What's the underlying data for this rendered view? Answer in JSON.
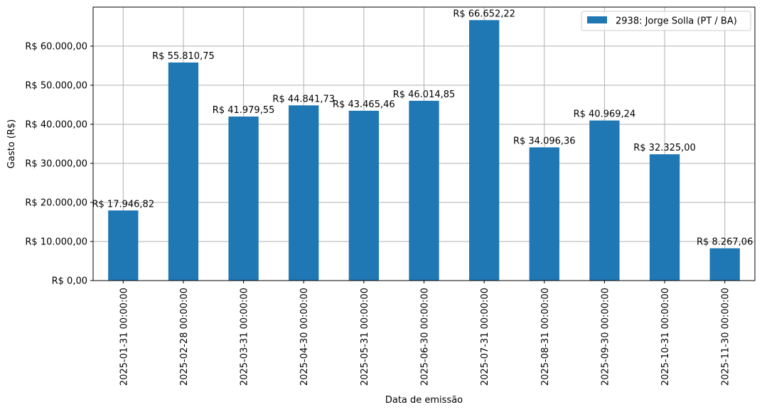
{
  "chart_data": {
    "type": "bar",
    "categories": [
      "2025-01-31 00:00:00",
      "2025-02-28 00:00:00",
      "2025-03-31 00:00:00",
      "2025-04-30 00:00:00",
      "2025-05-31 00:00:00",
      "2025-06-30 00:00:00",
      "2025-07-31 00:00:00",
      "2025-08-31 00:00:00",
      "2025-09-30 00:00:00",
      "2025-10-31 00:00:00",
      "2025-11-30 00:00:00"
    ],
    "series": [
      {
        "name": "2938: Jorge Solla (PT / BA)",
        "color": "#1f77b4",
        "values": [
          17946.82,
          55810.75,
          41979.55,
          44841.73,
          43465.46,
          46014.85,
          66652.22,
          34096.36,
          40969.24,
          32325.0,
          8267.06
        ],
        "labels": [
          "R$ 17.946,82",
          "R$ 55.810,75",
          "R$ 41.979,55",
          "R$ 44.841,73",
          "R$ 43.465,46",
          "R$ 46.014,85",
          "R$ 66.652,22",
          "R$ 34.096,36",
          "R$ 40.969,24",
          "R$ 32.325,00",
          "R$ 8.267,06"
        ]
      }
    ],
    "xlabel": "Data de emissão",
    "ylabel": "Gasto (R$)",
    "ylim": [
      0,
      69985.83
    ],
    "yticks": [
      0,
      10000,
      20000,
      30000,
      40000,
      50000,
      60000
    ],
    "ytick_labels": [
      "R$ 0,00",
      "R$ 10.000,00",
      "R$ 20.000,00",
      "R$ 30.000,00",
      "R$ 40.000,00",
      "R$ 50.000,00",
      "R$ 60.000,00"
    ],
    "grid": true,
    "legend_position": "top-right"
  }
}
